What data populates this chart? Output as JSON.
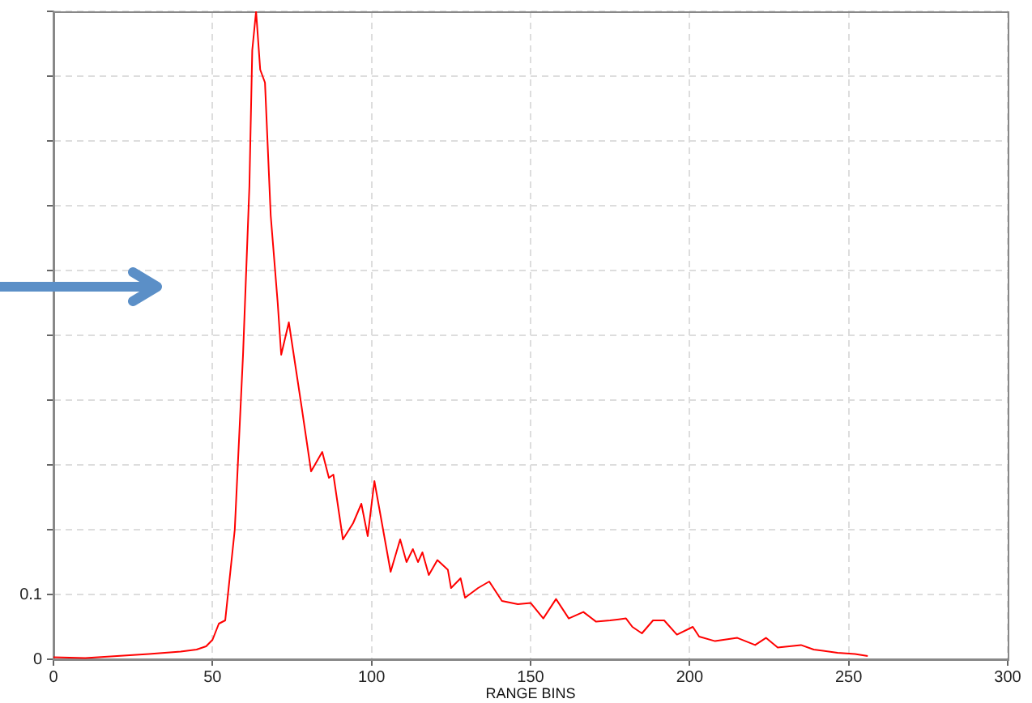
{
  "chart_data": {
    "type": "line",
    "xlabel": "RANGE BINS",
    "x": [
      0,
      10,
      20,
      30,
      40,
      45,
      48,
      50,
      52,
      54,
      57,
      59.6,
      61.6,
      62.5,
      63.7,
      65,
      66.5,
      68.3,
      70.5,
      71.6,
      74,
      78,
      81,
      84.5,
      86.6,
      88,
      91,
      94.2,
      96.8,
      98.8,
      100.9,
      106,
      109,
      111,
      113,
      114.6,
      116,
      118,
      120.7,
      124,
      125,
      128,
      129.4,
      133.5,
      137,
      141,
      146,
      150,
      154,
      158,
      162,
      166.6,
      170.6,
      175,
      180,
      182,
      185,
      188.5,
      192,
      196,
      201,
      203,
      208,
      215,
      220.6,
      224,
      227.7,
      235,
      239,
      246.5,
      252,
      256
    ],
    "series": [
      {
        "color": "#ff0000",
        "values": [
          0.003,
          0.002,
          0.005,
          0.008,
          0.012,
          0.015,
          0.02,
          0.03,
          0.055,
          0.06,
          0.2,
          0.47,
          0.73,
          0.94,
          1.0,
          0.91,
          0.89,
          0.685,
          0.55,
          0.47,
          0.52,
          0.39,
          0.29,
          0.32,
          0.28,
          0.285,
          0.185,
          0.21,
          0.24,
          0.19,
          0.275,
          0.135,
          0.185,
          0.15,
          0.17,
          0.15,
          0.165,
          0.13,
          0.153,
          0.138,
          0.11,
          0.125,
          0.095,
          0.11,
          0.12,
          0.09,
          0.085,
          0.087,
          0.063,
          0.093,
          0.063,
          0.073,
          0.058,
          0.06,
          0.063,
          0.05,
          0.04,
          0.06,
          0.06,
          0.038,
          0.05,
          0.035,
          0.028,
          0.033,
          0.022,
          0.033,
          0.018,
          0.022,
          0.015,
          0.01,
          0.008,
          0.005
        ]
      }
    ],
    "xlim": [
      0,
      300
    ],
    "xticks": [
      0,
      50,
      100,
      150,
      200,
      250,
      300
    ],
    "ylim": [
      0,
      1
    ],
    "yticks": [
      0,
      0.1,
      {
        "value": 0.2,
        "label": null
      },
      {
        "value": 0.3,
        "label": null
      },
      {
        "value": 0.4,
        "label": null
      },
      {
        "value": 0.5,
        "label": null
      },
      {
        "value": 0.6,
        "label": null
      },
      {
        "value": 0.7,
        "label": null
      },
      {
        "value": 0.8,
        "label": null
      },
      {
        "value": 0.9,
        "label": null
      },
      {
        "value": 1,
        "label": null
      }
    ],
    "grid": true,
    "legend": false,
    "marker": "none",
    "line_style": "solid"
  }
}
